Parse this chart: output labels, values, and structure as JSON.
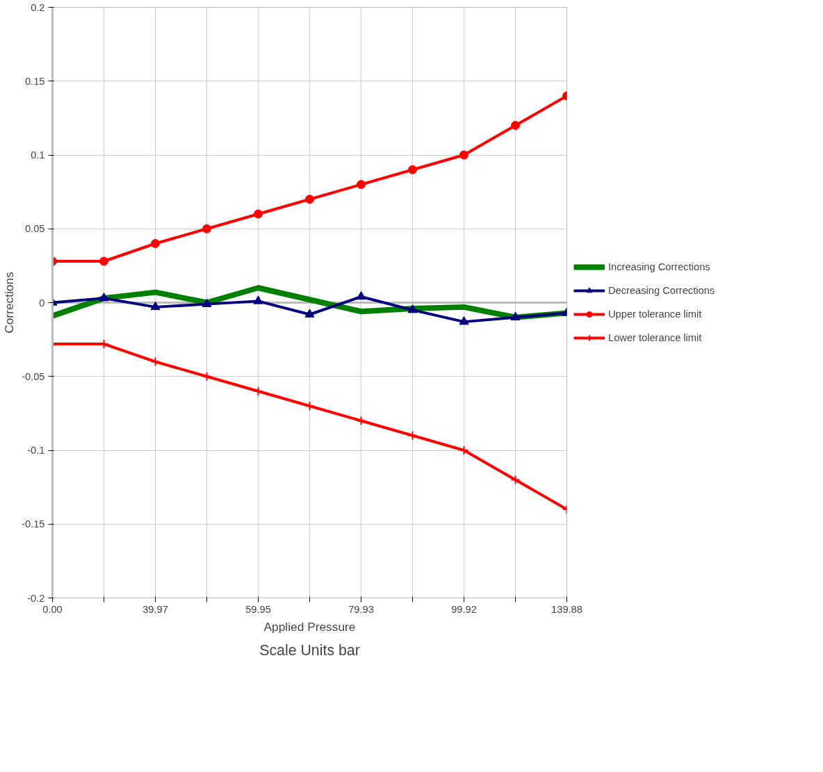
{
  "chart_data": {
    "type": "line",
    "xlabel": "Applied Pressure",
    "ylabel": "Corrections",
    "annotations": [
      "Scale Units bar"
    ],
    "categories": [
      "0.00",
      null,
      "39.97",
      null,
      "59.95",
      null,
      "79.93",
      null,
      "99.92",
      null,
      "139.88"
    ],
    "series": [
      {
        "name": "Increasing Corrections",
        "color": "#008000",
        "marker": "none",
        "values": [
          -0.009,
          0.003,
          0.007,
          0.0,
          0.01,
          0.002,
          -0.006,
          -0.004,
          -0.003,
          -0.01,
          -0.007
        ]
      },
      {
        "name": "Decreasing Corrections",
        "color": "#000080",
        "marker": "triangle",
        "values": [
          0.0,
          0.003,
          -0.003,
          -0.001,
          0.001,
          -0.008,
          0.004,
          -0.005,
          -0.013,
          -0.01,
          -0.007
        ]
      },
      {
        "name": "Upper tolerance limit",
        "color": "#ff0000",
        "marker": "circle",
        "values": [
          0.028,
          0.028,
          0.04,
          0.05,
          0.06,
          0.07,
          0.08,
          0.09,
          0.1,
          0.12,
          0.14
        ]
      },
      {
        "name": "Lower tolerance limit",
        "color": "#ff0000",
        "marker": "cross",
        "values": [
          -0.028,
          -0.028,
          -0.04,
          -0.05,
          -0.06,
          -0.07,
          -0.08,
          -0.09,
          -0.1,
          -0.12,
          -0.14
        ]
      }
    ],
    "ylim": [
      -0.2,
      0.2
    ],
    "yticks": [
      -0.2,
      -0.15,
      -0.1,
      -0.05,
      0,
      0.05,
      0.1,
      0.15,
      0.2
    ],
    "grid": true,
    "legend": "right",
    "line_style": "solid"
  }
}
